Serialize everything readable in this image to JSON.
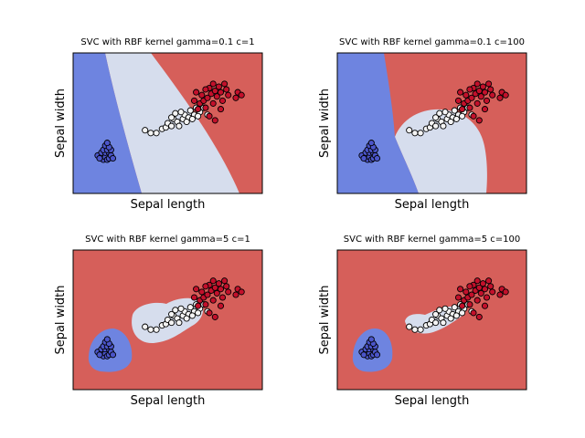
{
  "colors": {
    "class_0": "#6e84e0",
    "class_1": "#d6dded",
    "class_2": "#d65f5a",
    "point_0": "#4b55c9",
    "point_1": "#f4f4f4",
    "point_2": "#c3102b",
    "point_edge": "#000000"
  },
  "chart_data": [
    {
      "type": "scatter",
      "title": "SVC with RBF kernel gamma=0.1 c=1",
      "xlabel": "Sepal length",
      "ylabel": "Sepal width",
      "ticks_visible": false,
      "background": "decision-regions"
    },
    {
      "type": "scatter",
      "title": "SVC with RBF kernel gamma=0.1 c=100",
      "xlabel": "Sepal length",
      "ylabel": "Sepal width",
      "ticks_visible": false,
      "background": "decision-regions"
    },
    {
      "type": "scatter",
      "title": "SVC with RBF kernel gamma=5 c=1",
      "xlabel": "Sepal length",
      "ylabel": "Sepal width",
      "ticks_visible": false,
      "background": "decision-regions"
    },
    {
      "type": "scatter",
      "title": "SVC with RBF kernel gamma=5 c=100",
      "xlabel": "Sepal length",
      "ylabel": "Sepal width",
      "ticks_visible": false,
      "background": "decision-regions"
    }
  ],
  "points": {
    "class_0": [
      [
        0.13,
        0.27
      ],
      [
        0.15,
        0.26
      ],
      [
        0.16,
        0.24
      ],
      [
        0.17,
        0.26
      ],
      [
        0.18,
        0.24
      ],
      [
        0.19,
        0.25
      ],
      [
        0.15,
        0.29
      ],
      [
        0.17,
        0.29
      ],
      [
        0.19,
        0.29
      ],
      [
        0.2,
        0.27
      ],
      [
        0.16,
        0.31
      ],
      [
        0.18,
        0.31
      ],
      [
        0.2,
        0.31
      ],
      [
        0.17,
        0.34
      ],
      [
        0.19,
        0.33
      ],
      [
        0.14,
        0.25
      ],
      [
        0.21,
        0.25
      ],
      [
        0.18,
        0.36
      ]
    ],
    "class_1": [
      [
        0.38,
        0.45
      ],
      [
        0.41,
        0.43
      ],
      [
        0.44,
        0.43
      ],
      [
        0.47,
        0.46
      ],
      [
        0.49,
        0.47
      ],
      [
        0.5,
        0.5
      ],
      [
        0.52,
        0.48
      ],
      [
        0.53,
        0.53
      ],
      [
        0.55,
        0.51
      ],
      [
        0.56,
        0.48
      ],
      [
        0.58,
        0.53
      ],
      [
        0.59,
        0.56
      ],
      [
        0.61,
        0.54
      ],
      [
        0.62,
        0.59
      ],
      [
        0.64,
        0.56
      ],
      [
        0.65,
        0.61
      ],
      [
        0.67,
        0.58
      ],
      [
        0.69,
        0.61
      ],
      [
        0.71,
        0.56
      ],
      [
        0.52,
        0.54
      ],
      [
        0.54,
        0.57
      ],
      [
        0.57,
        0.58
      ],
      [
        0.6,
        0.51
      ],
      [
        0.63,
        0.53
      ],
      [
        0.66,
        0.55
      ]
    ],
    "class_2": [
      [
        0.64,
        0.66
      ],
      [
        0.66,
        0.6
      ],
      [
        0.67,
        0.64
      ],
      [
        0.68,
        0.7
      ],
      [
        0.69,
        0.66
      ],
      [
        0.7,
        0.61
      ],
      [
        0.71,
        0.68
      ],
      [
        0.72,
        0.75
      ],
      [
        0.73,
        0.71
      ],
      [
        0.74,
        0.64
      ],
      [
        0.75,
        0.73
      ],
      [
        0.76,
        0.69
      ],
      [
        0.77,
        0.76
      ],
      [
        0.78,
        0.72
      ],
      [
        0.79,
        0.66
      ],
      [
        0.8,
        0.78
      ],
      [
        0.81,
        0.74
      ],
      [
        0.78,
        0.6
      ],
      [
        0.72,
        0.55
      ],
      [
        0.75,
        0.52
      ],
      [
        0.82,
        0.7
      ],
      [
        0.86,
        0.68
      ],
      [
        0.87,
        0.72
      ],
      [
        0.89,
        0.7
      ],
      [
        0.7,
        0.74
      ],
      [
        0.74,
        0.78
      ],
      [
        0.65,
        0.72
      ]
    ]
  }
}
